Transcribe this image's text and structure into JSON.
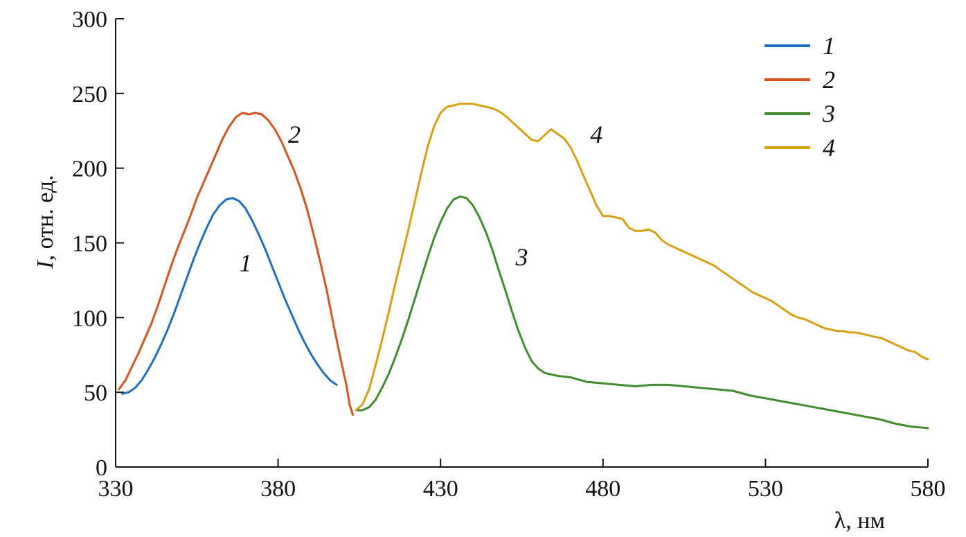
{
  "chart_data": {
    "type": "line",
    "title": "",
    "xlabel": "λ, нм",
    "ylabel_symbol": "I",
    "ylabel_unit": ", отн. ед.",
    "xlim": [
      330,
      580
    ],
    "ylim": [
      0,
      300
    ],
    "x_ticks": [
      330,
      380,
      430,
      480,
      530,
      580
    ],
    "y_ticks": [
      0,
      50,
      100,
      150,
      200,
      250,
      300
    ],
    "grid": false,
    "legend_position": "top-right",
    "series": [
      {
        "name": "1",
        "color": "#1f6fc0",
        "points": [
          [
            332,
            49
          ],
          [
            334,
            50
          ],
          [
            336,
            53
          ],
          [
            338,
            58
          ],
          [
            340,
            65
          ],
          [
            342,
            73
          ],
          [
            344,
            82
          ],
          [
            346,
            92
          ],
          [
            348,
            103
          ],
          [
            350,
            115
          ],
          [
            352,
            127
          ],
          [
            354,
            139
          ],
          [
            356,
            150
          ],
          [
            358,
            160
          ],
          [
            360,
            169
          ],
          [
            362,
            175
          ],
          [
            364,
            179
          ],
          [
            366,
            180
          ],
          [
            368,
            178
          ],
          [
            370,
            173
          ],
          [
            372,
            165
          ],
          [
            374,
            156
          ],
          [
            376,
            146
          ],
          [
            378,
            135
          ],
          [
            380,
            124
          ],
          [
            382,
            113
          ],
          [
            384,
            103
          ],
          [
            386,
            93
          ],
          [
            388,
            84
          ],
          [
            390,
            76
          ],
          [
            392,
            69
          ],
          [
            394,
            63
          ],
          [
            396,
            58
          ],
          [
            398,
            55
          ]
        ]
      },
      {
        "name": "2",
        "color": "#d9531e",
        "points": [
          [
            331,
            52
          ],
          [
            333,
            58
          ],
          [
            335,
            67
          ],
          [
            337,
            76
          ],
          [
            339,
            86
          ],
          [
            341,
            96
          ],
          [
            343,
            108
          ],
          [
            345,
            121
          ],
          [
            347,
            134
          ],
          [
            349,
            146
          ],
          [
            351,
            157
          ],
          [
            353,
            168
          ],
          [
            355,
            180
          ],
          [
            357,
            190
          ],
          [
            359,
            200
          ],
          [
            361,
            210
          ],
          [
            363,
            220
          ],
          [
            365,
            228
          ],
          [
            367,
            234
          ],
          [
            369,
            237
          ],
          [
            371,
            236
          ],
          [
            373,
            237
          ],
          [
            375,
            236
          ],
          [
            377,
            232
          ],
          [
            379,
            226
          ],
          [
            381,
            218
          ],
          [
            383,
            208
          ],
          [
            385,
            198
          ],
          [
            387,
            186
          ],
          [
            389,
            172
          ],
          [
            391,
            155
          ],
          [
            393,
            137
          ],
          [
            395,
            118
          ],
          [
            397,
            96
          ],
          [
            399,
            75
          ],
          [
            401,
            55
          ],
          [
            402,
            42
          ],
          [
            403,
            35
          ]
        ]
      },
      {
        "name": "3",
        "color": "#3f8d2c",
        "points": [
          [
            404,
            38
          ],
          [
            406,
            38
          ],
          [
            408,
            40
          ],
          [
            410,
            45
          ],
          [
            412,
            53
          ],
          [
            414,
            62
          ],
          [
            416,
            73
          ],
          [
            418,
            85
          ],
          [
            420,
            98
          ],
          [
            422,
            112
          ],
          [
            424,
            126
          ],
          [
            426,
            140
          ],
          [
            428,
            153
          ],
          [
            430,
            164
          ],
          [
            432,
            173
          ],
          [
            434,
            179
          ],
          [
            436,
            181
          ],
          [
            438,
            180
          ],
          [
            440,
            175
          ],
          [
            442,
            167
          ],
          [
            444,
            157
          ],
          [
            446,
            145
          ],
          [
            448,
            131
          ],
          [
            450,
            118
          ],
          [
            452,
            104
          ],
          [
            454,
            91
          ],
          [
            456,
            80
          ],
          [
            458,
            71
          ],
          [
            460,
            66
          ],
          [
            462,
            63
          ],
          [
            464,
            62
          ],
          [
            466,
            61
          ],
          [
            470,
            60
          ],
          [
            475,
            57
          ],
          [
            480,
            56
          ],
          [
            485,
            55
          ],
          [
            490,
            54
          ],
          [
            495,
            55
          ],
          [
            500,
            55
          ],
          [
            505,
            54
          ],
          [
            510,
            53
          ],
          [
            515,
            52
          ],
          [
            520,
            51
          ],
          [
            525,
            48
          ],
          [
            530,
            46
          ],
          [
            535,
            44
          ],
          [
            540,
            42
          ],
          [
            545,
            40
          ],
          [
            550,
            38
          ],
          [
            555,
            36
          ],
          [
            560,
            34
          ],
          [
            565,
            32
          ],
          [
            570,
            29
          ],
          [
            575,
            27
          ],
          [
            580,
            26
          ]
        ]
      },
      {
        "name": "4",
        "color": "#d6a010",
        "points": [
          [
            404,
            38
          ],
          [
            406,
            42
          ],
          [
            408,
            52
          ],
          [
            410,
            68
          ],
          [
            412,
            85
          ],
          [
            414,
            103
          ],
          [
            416,
            122
          ],
          [
            418,
            140
          ],
          [
            420,
            158
          ],
          [
            422,
            177
          ],
          [
            424,
            196
          ],
          [
            426,
            214
          ],
          [
            428,
            228
          ],
          [
            430,
            237
          ],
          [
            432,
            241
          ],
          [
            434,
            242
          ],
          [
            436,
            243
          ],
          [
            438,
            243
          ],
          [
            440,
            243
          ],
          [
            442,
            242
          ],
          [
            444,
            241
          ],
          [
            446,
            240
          ],
          [
            448,
            238
          ],
          [
            450,
            235
          ],
          [
            452,
            231
          ],
          [
            454,
            227
          ],
          [
            456,
            223
          ],
          [
            458,
            219
          ],
          [
            460,
            218
          ],
          [
            462,
            222
          ],
          [
            464,
            226
          ],
          [
            466,
            223
          ],
          [
            468,
            220
          ],
          [
            470,
            214
          ],
          [
            472,
            205
          ],
          [
            474,
            195
          ],
          [
            476,
            185
          ],
          [
            478,
            175
          ],
          [
            480,
            168
          ],
          [
            482,
            168
          ],
          [
            484,
            167
          ],
          [
            486,
            166
          ],
          [
            488,
            160
          ],
          [
            490,
            158
          ],
          [
            492,
            158
          ],
          [
            494,
            159
          ],
          [
            496,
            157
          ],
          [
            498,
            152
          ],
          [
            500,
            149
          ],
          [
            502,
            147
          ],
          [
            504,
            145
          ],
          [
            506,
            143
          ],
          [
            508,
            141
          ],
          [
            510,
            139
          ],
          [
            512,
            137
          ],
          [
            514,
            135
          ],
          [
            516,
            132
          ],
          [
            518,
            129
          ],
          [
            520,
            126
          ],
          [
            522,
            123
          ],
          [
            524,
            120
          ],
          [
            526,
            117
          ],
          [
            528,
            115
          ],
          [
            530,
            113
          ],
          [
            532,
            111
          ],
          [
            534,
            108
          ],
          [
            536,
            105
          ],
          [
            538,
            102
          ],
          [
            540,
            100
          ],
          [
            542,
            99
          ],
          [
            544,
            97
          ],
          [
            546,
            95
          ],
          [
            548,
            93
          ],
          [
            550,
            92
          ],
          [
            552,
            91
          ],
          [
            554,
            91
          ],
          [
            556,
            90
          ],
          [
            558,
            90
          ],
          [
            560,
            89
          ],
          [
            562,
            88
          ],
          [
            564,
            87
          ],
          [
            566,
            86
          ],
          [
            568,
            84
          ],
          [
            570,
            82
          ],
          [
            572,
            80
          ],
          [
            574,
            78
          ],
          [
            576,
            77
          ],
          [
            578,
            74
          ],
          [
            580,
            72
          ]
        ]
      }
    ],
    "curve_labels": [
      {
        "text": "1",
        "x": 370,
        "y": 131
      },
      {
        "text": "2",
        "x": 385,
        "y": 217
      },
      {
        "text": "3",
        "x": 455,
        "y": 135
      },
      {
        "text": "4",
        "x": 478,
        "y": 217
      }
    ]
  }
}
